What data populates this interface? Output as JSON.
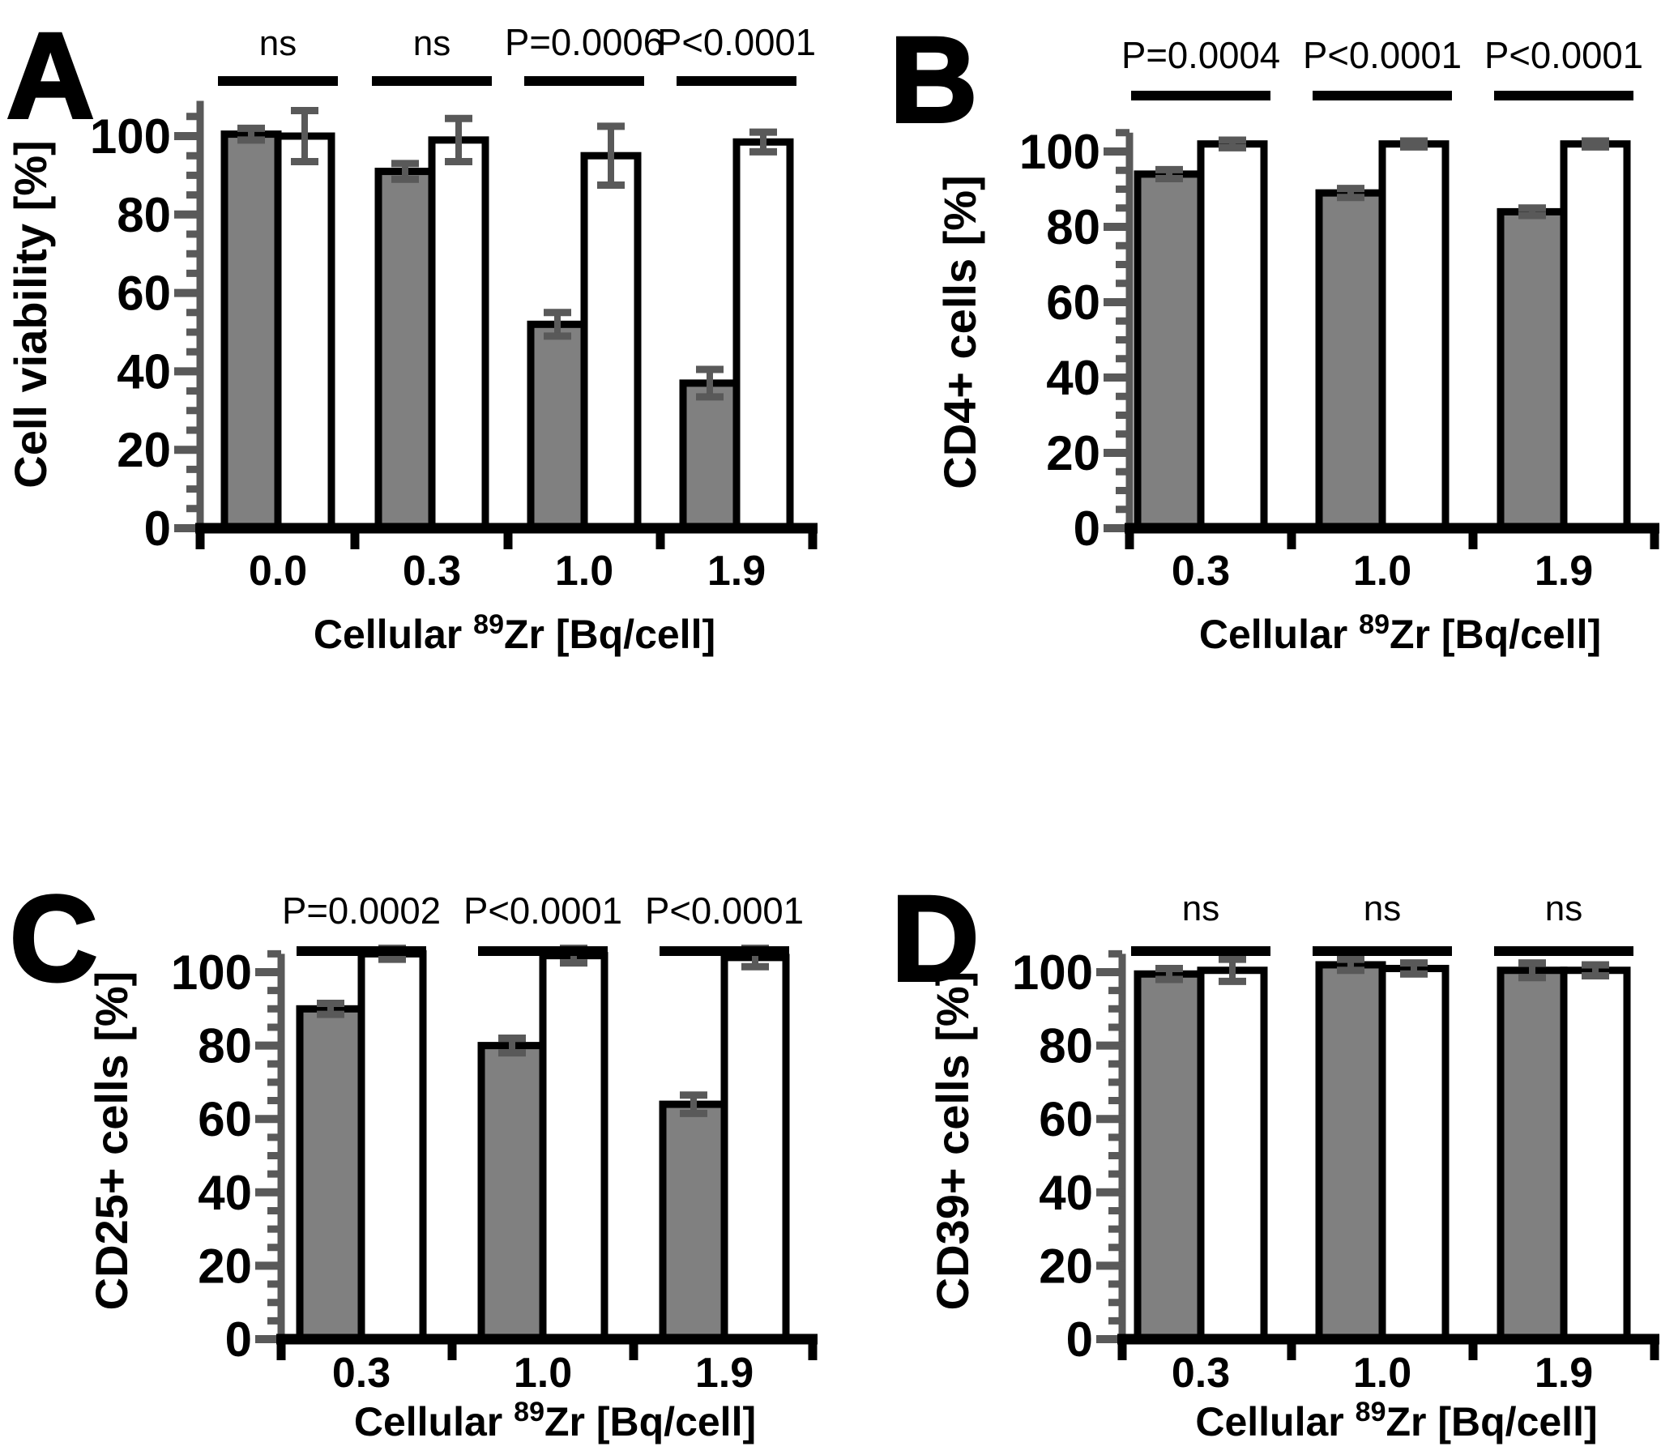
{
  "figure": {
    "description": "Four-panel bar chart figure comparing gray-filled bars versus white (open) bars at increasing cellular 89Zr activity, with error bars and significance annotations",
    "panel_letters": [
      "A",
      "B",
      "C",
      "D"
    ]
  },
  "colors": {
    "background": "#ffffff",
    "bar_gray_fill": "#808080",
    "bar_white_fill": "#ffffff",
    "bar_stroke": "#000000",
    "error_bar": "#595959",
    "axis_y_and_ticks": "#595959",
    "axis_x": "#000000",
    "text": "#000000",
    "sig_line": "#000000"
  },
  "chart_data": [
    {
      "panel": "A",
      "type": "bar",
      "ylabel": "Cell viability [%]",
      "xlabel_prefix": "Cellular ",
      "xlabel_sup": "89",
      "xlabel_suffix": "Zr [Bq/cell]",
      "categories": [
        "0.0",
        "0.3",
        "1.0",
        "1.9"
      ],
      "series": [
        {
          "name": "gray-filled bars",
          "fill": "#808080",
          "values": [
            100.5,
            91,
            52,
            37
          ],
          "errors": [
            1.5,
            2,
            3,
            3.5
          ]
        },
        {
          "name": "white open bars",
          "fill": "#ffffff",
          "values": [
            100,
            99,
            95,
            98.5
          ],
          "errors": [
            6.5,
            5.5,
            7.5,
            2.5
          ]
        }
      ],
      "annotations": [
        "ns",
        "ns",
        "P=0.0006",
        "P<0.0001"
      ],
      "ylim": [
        0,
        109
      ],
      "yticks_major": [
        0,
        20,
        40,
        60,
        80,
        100
      ],
      "ytick_minor_step": 5,
      "grid": false,
      "legend": "none"
    },
    {
      "panel": "B",
      "type": "bar",
      "ylabel": "CD4+ cells [%]",
      "xlabel_prefix": "Cellular ",
      "xlabel_sup": "89",
      "xlabel_suffix": "Zr [Bq/cell]",
      "categories": [
        "0.3",
        "1.0",
        "1.9"
      ],
      "series": [
        {
          "name": "gray-filled bars",
          "fill": "#808080",
          "values": [
            94,
            89,
            84
          ],
          "errors": [
            1.2,
            1.2,
            1
          ]
        },
        {
          "name": "white open bars",
          "fill": "#ffffff",
          "values": [
            102,
            102,
            102
          ],
          "errors": [
            1,
            0.8,
            0.8
          ]
        }
      ],
      "annotations": [
        "P=0.0004",
        "P<0.0001",
        "P<0.0001"
      ],
      "ylim": [
        0,
        105
      ],
      "yticks_major": [
        0,
        20,
        40,
        60,
        80,
        100
      ],
      "ytick_minor_step": 5,
      "grid": false,
      "legend": "none"
    },
    {
      "panel": "C",
      "type": "bar",
      "ylabel": "CD25+ cells [%]",
      "xlabel_prefix": "Cellular ",
      "xlabel_sup": "89",
      "xlabel_suffix": "Zr [Bq/cell]",
      "categories": [
        "0.3",
        "1.0",
        "1.9"
      ],
      "series": [
        {
          "name": "gray-filled bars",
          "fill": "#808080",
          "values": [
            90,
            80,
            64
          ],
          "errors": [
            1.5,
            2,
            2.5
          ]
        },
        {
          "name": "white open bars",
          "fill": "#ffffff",
          "values": [
            105,
            104.5,
            104
          ],
          "errors": [
            1.5,
            2,
            2.5
          ]
        }
      ],
      "annotations": [
        "P=0.0002",
        "P<0.0001",
        "P<0.0001"
      ],
      "ylim": [
        0,
        105
      ],
      "yticks_major": [
        0,
        20,
        40,
        60,
        80,
        100
      ],
      "ytick_minor_step": 5,
      "grid": false,
      "legend": "none"
    },
    {
      "panel": "D",
      "type": "bar",
      "ylabel": "CD39+ cells [%]",
      "xlabel_prefix": "Cellular ",
      "xlabel_sup": "89",
      "xlabel_suffix": "Zr [Bq/cell]",
      "categories": [
        "0.3",
        "1.0",
        "1.9"
      ],
      "series": [
        {
          "name": "gray-filled bars",
          "fill": "#808080",
          "values": [
            99.5,
            102,
            100.5
          ],
          "errors": [
            1.5,
            1.5,
            2
          ]
        },
        {
          "name": "white open bars",
          "fill": "#ffffff",
          "values": [
            100.5,
            101,
            100.5
          ],
          "errors": [
            3,
            1.5,
            1.5
          ]
        }
      ],
      "annotations": [
        "ns",
        "ns",
        "ns"
      ],
      "ylim": [
        0,
        105
      ],
      "yticks_major": [
        0,
        20,
        40,
        60,
        80,
        100
      ],
      "ytick_minor_step": 5,
      "grid": false,
      "legend": "none"
    }
  ]
}
